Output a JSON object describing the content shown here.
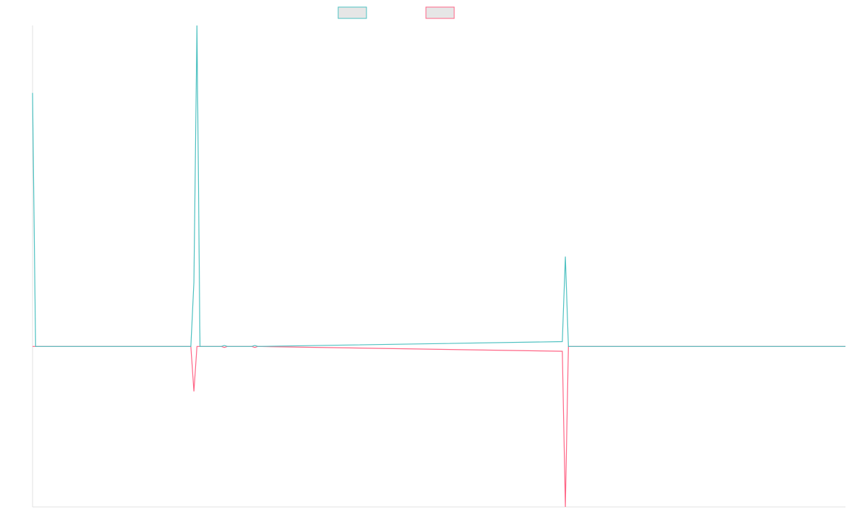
{
  "chart_data": {
    "type": "line",
    "x": [
      0,
      1,
      52,
      53,
      54,
      55,
      62,
      63,
      64,
      72,
      73,
      74,
      174,
      175,
      176,
      267
    ],
    "series": [
      {
        "color": "#4bc0c0",
        "values": [
          79,
          0,
          0,
          20,
          100,
          0,
          0,
          0.3,
          0,
          0,
          0.3,
          0,
          1.5,
          28,
          0,
          0
        ]
      },
      {
        "color": "#ff6384",
        "values": [
          0,
          0,
          0,
          -14,
          0,
          0,
          0,
          -0.3,
          0,
          0,
          -0.3,
          0,
          -1.5,
          -50,
          0,
          0
        ]
      }
    ],
    "xlim": [
      0,
      267
    ],
    "ylim": [
      -50,
      100
    ],
    "legend": "top",
    "legend_box_fill": "#e6e6e6",
    "axis_color": "#e0e0e0"
  }
}
